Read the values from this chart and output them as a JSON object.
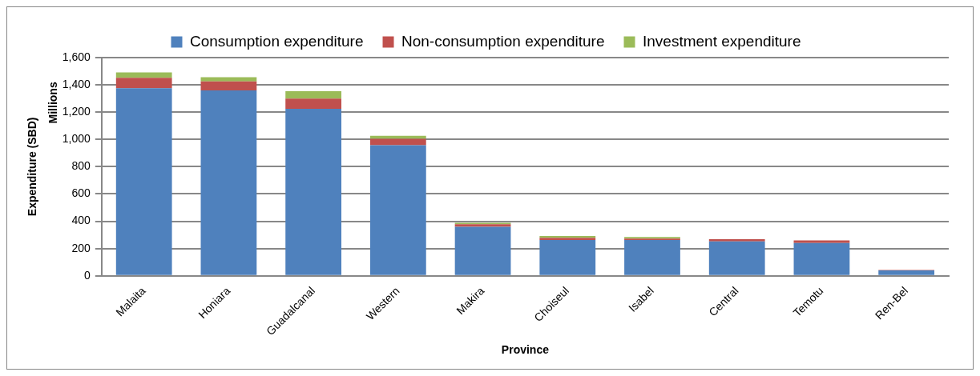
{
  "chart_data": {
    "type": "bar",
    "stacked": true,
    "xlabel": "Province",
    "ylabel": "Expenditure (SBD)",
    "annotations": [
      "Millions"
    ],
    "categories": [
      "Malaita",
      "Honiara",
      "Guadalcanal",
      "Western",
      "Makira",
      "Choiseul",
      "Isabel",
      "Central",
      "Temotu",
      "Ren-Bel"
    ],
    "series": [
      {
        "name": "Consumption expenditure",
        "color": "#4f81bd",
        "values": [
          1375,
          1359,
          1224,
          957,
          359,
          262,
          262,
          252,
          241,
          40
        ]
      },
      {
        "name": "Non-consumption expenditure",
        "color": "#c0504d",
        "values": [
          77,
          66,
          75,
          48,
          19,
          16,
          11,
          16,
          19,
          3
        ]
      },
      {
        "name": "Investment expenditure",
        "color": "#9bbb59",
        "values": [
          40,
          32,
          54,
          21,
          10,
          14,
          11,
          null,
          null,
          null
        ]
      }
    ],
    "ylim": [
      0,
      1600
    ],
    "yticks": [
      {
        "value": 0,
        "label": "0"
      },
      {
        "value": 200,
        "label": "200"
      },
      {
        "value": 400,
        "label": "400"
      },
      {
        "value": 600,
        "label": "600"
      },
      {
        "value": 800,
        "label": "800"
      },
      {
        "value": 1000,
        "label": "1,000"
      },
      {
        "value": 1200,
        "label": "1,200"
      },
      {
        "value": 1400,
        "label": "1,400"
      },
      {
        "value": 1600,
        "label": "1,600"
      }
    ],
    "grid": "y",
    "legend": "top"
  }
}
